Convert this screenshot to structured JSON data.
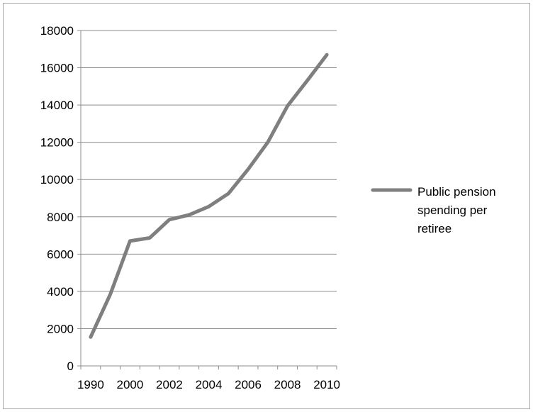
{
  "chart_data": {
    "type": "line",
    "title": "",
    "xlabel": "",
    "ylabel": "",
    "ylim": [
      0,
      18000
    ],
    "y_ticks": [
      0,
      2000,
      4000,
      6000,
      8000,
      10000,
      12000,
      14000,
      16000,
      18000
    ],
    "x_tick_labels": [
      "1990",
      "2000",
      "2002",
      "2004",
      "2006",
      "2008",
      "2010"
    ],
    "categories": [
      "1990",
      "1991",
      "2000",
      "2001",
      "2002",
      "2003",
      "2004",
      "2005",
      "2006",
      "2007",
      "2008",
      "2009",
      "2010"
    ],
    "series": [
      {
        "name": "Public pension spending per retiree",
        "color": "#7f7f7f",
        "values": [
          1550,
          3850,
          6700,
          6870,
          7850,
          8100,
          8550,
          9250,
          10550,
          12000,
          13950,
          15300,
          16700
        ]
      }
    ],
    "grid": "horizontal",
    "legend_position": "right"
  }
}
